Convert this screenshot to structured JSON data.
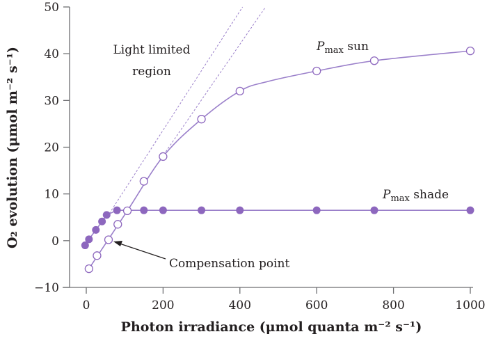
{
  "chart_data": {
    "type": "line",
    "xlabel": "Photon irradiance (μmol quanta m⁻² s⁻¹)",
    "ylabel": "O₂ evolution (μmol m⁻² s⁻¹)",
    "xlim": [
      0,
      1000
    ],
    "ylim": [
      -10,
      50
    ],
    "xticks": [
      "0",
      "200",
      "400",
      "600",
      "800",
      "1000"
    ],
    "xtick_values": [
      0,
      200,
      400,
      600,
      800,
      1000
    ],
    "yticks": [
      "−10",
      "0",
      "10",
      "20",
      "30",
      "40",
      "50"
    ],
    "ytick_values": [
      -10,
      0,
      10,
      20,
      30,
      40,
      50
    ],
    "grid": false,
    "series": [
      {
        "name": "Pmax sun",
        "marker": "open-circle",
        "x": [
          7,
          28,
          58,
          82,
          107,
          150,
          200,
          300,
          400,
          600,
          750,
          1000
        ],
        "y": [
          -6.0,
          -3.2,
          0.2,
          3.5,
          6.4,
          12.7,
          18.0,
          26.0,
          32.0,
          36.3,
          38.5,
          40.6
        ],
        "curve_x": [
          7,
          107,
          200,
          300,
          400,
          470,
          600,
          750,
          1000
        ],
        "curve_y": [
          -6.0,
          6.4,
          18.0,
          26.0,
          32.0,
          34.0,
          36.3,
          38.5,
          40.6
        ]
      },
      {
        "name": "Pmax shade",
        "marker": "filled-circle",
        "x": [
          -3,
          7,
          25,
          41,
          53,
          80,
          150,
          200,
          300,
          400,
          600,
          750,
          1000
        ],
        "y": [
          -1.0,
          0.3,
          2.3,
          4.1,
          5.5,
          6.5,
          6.5,
          6.5,
          6.5,
          6.5,
          6.5,
          6.5,
          6.5
        ]
      }
    ],
    "light_limited_lines": [
      {
        "x": [
          60,
          407
        ],
        "y": [
          5.8,
          50
        ]
      },
      {
        "x": [
          190,
          467
        ],
        "y": [
          17,
          50
        ]
      }
    ],
    "annotations": {
      "light_limited_line1": "Light limited",
      "light_limited_line2": "region",
      "pmax_sun_p": "P",
      "pmax_sun_sub": "max",
      "pmax_sun_rest": " sun",
      "pmax_shade_p": "P",
      "pmax_shade_sub": "max",
      "pmax_shade_rest": " shade",
      "compensation_point": "Compensation point"
    },
    "colors": {
      "series": "#8d67be",
      "line": "#9a7fca",
      "axis": "#6d6e71",
      "arrow": "#231f20"
    }
  }
}
